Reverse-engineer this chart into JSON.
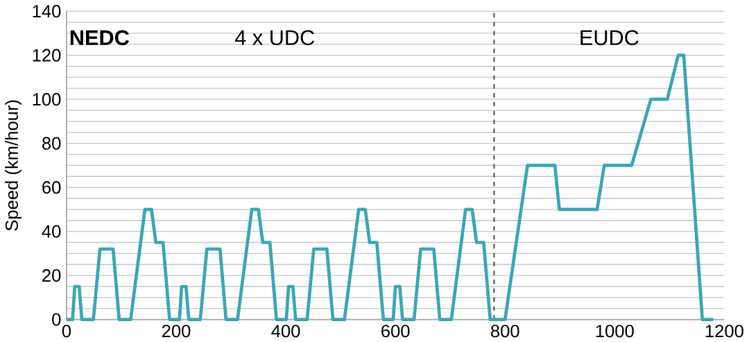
{
  "chart_data": {
    "type": "line",
    "ylabel": "Speed (km/hour)",
    "color": "#3aa6b6",
    "grid": "y",
    "marker": "none",
    "line_style": "solid",
    "xlim": [
      0,
      1200
    ],
    "xticks": [
      0,
      200,
      400,
      600,
      800,
      1000,
      1200
    ],
    "ylim": [
      0,
      140
    ],
    "yticks": [
      0,
      {
        "value": 5,
        "label": null
      },
      {
        "value": 10,
        "label": null
      },
      {
        "value": 15,
        "label": null
      },
      20,
      {
        "value": 25,
        "label": null
      },
      {
        "value": 30,
        "label": null
      },
      {
        "value": 35,
        "label": null
      },
      40,
      {
        "value": 45,
        "label": null
      },
      {
        "value": 50,
        "label": null
      },
      {
        "value": 55,
        "label": null
      },
      60,
      {
        "value": 65,
        "label": null
      },
      {
        "value": 70,
        "label": null
      },
      {
        "value": 75,
        "label": null
      },
      80,
      {
        "value": 85,
        "label": null
      },
      {
        "value": 90,
        "label": null
      },
      {
        "value": 95,
        "label": null
      },
      100,
      {
        "value": 105,
        "label": null
      },
      {
        "value": 110,
        "label": null
      },
      {
        "value": 115,
        "label": null
      },
      120,
      {
        "value": 125,
        "label": null
      },
      {
        "value": 130,
        "label": null
      },
      {
        "value": 135,
        "label": null
      },
      140
    ],
    "x": [
      0,
      11,
      15,
      23,
      28,
      49,
      61,
      85,
      96,
      117,
      143,
      155,
      163,
      176,
      188,
      195,
      206,
      210,
      218,
      223,
      244,
      256,
      280,
      291,
      312,
      338,
      350,
      358,
      371,
      383,
      390,
      401,
      405,
      413,
      418,
      439,
      451,
      475,
      486,
      507,
      533,
      545,
      553,
      566,
      578,
      585,
      596,
      600,
      608,
      613,
      634,
      646,
      670,
      681,
      702,
      728,
      740,
      748,
      761,
      773,
      780,
      800,
      841,
      891,
      899,
      968,
      981,
      1031,
      1066,
      1096,
      1116,
      1126,
      1160,
      1180
    ],
    "values": [
      0,
      0,
      15,
      15,
      0,
      0,
      32,
      32,
      0,
      0,
      50,
      50,
      35,
      35,
      0,
      0,
      0,
      15,
      15,
      0,
      0,
      32,
      32,
      0,
      0,
      50,
      50,
      35,
      35,
      0,
      0,
      0,
      15,
      15,
      0,
      0,
      32,
      32,
      0,
      0,
      50,
      50,
      35,
      35,
      0,
      0,
      0,
      15,
      15,
      0,
      0,
      32,
      32,
      0,
      0,
      50,
      50,
      35,
      35,
      0,
      0,
      0,
      70,
      70,
      50,
      50,
      70,
      70,
      100,
      100,
      120,
      120,
      0,
      0
    ],
    "ref_lines": [
      {
        "axis": "x",
        "value": 780,
        "color": "#555555",
        "line_style": "dashed"
      }
    ],
    "annotations": [
      "NEDC",
      "4 x UDC",
      "EUDC"
    ]
  }
}
